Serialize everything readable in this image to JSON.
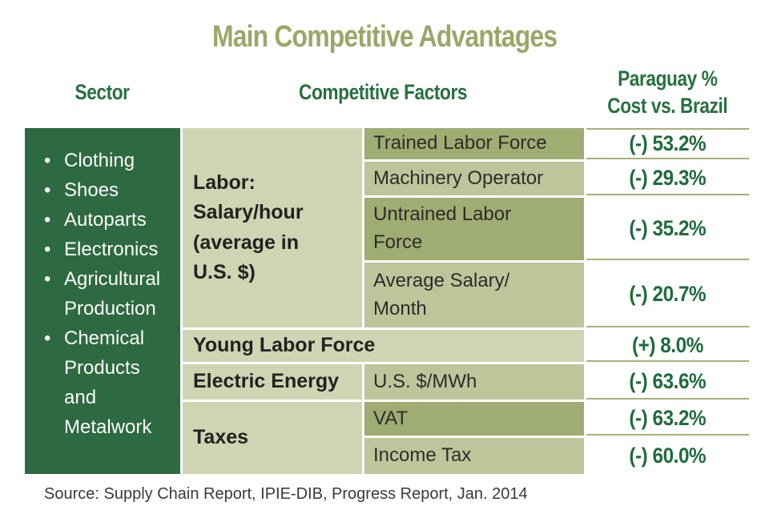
{
  "title": "Main Competitive Advantages",
  "headers": {
    "sector": "Sector",
    "factors": "Competitive Factors",
    "paraguay": "Paraguay %\nCost vs. Brazil"
  },
  "sectors": [
    "Clothing",
    "Shoes",
    "Autoparts",
    "Electronics",
    "Agricultural\nProduction",
    "Chemical\nProducts\nand\nMetalwork"
  ],
  "table": {
    "labor": {
      "group_label": "Labor:\nSalary/hour\n(average in\nU.S. $)",
      "rows": [
        {
          "factor": "Trained Labor Force",
          "value": "(-) 53.2%"
        },
        {
          "factor": "Machinery Operator",
          "value": "(-) 29.3%"
        },
        {
          "factor": "Untrained Labor\nForce",
          "value": "(-) 35.2%"
        },
        {
          "factor": "Average Salary/\nMonth",
          "value": "(-) 20.7%"
        }
      ]
    },
    "young_labor": {
      "label": "Young Labor Force",
      "value": "(+) 8.0%"
    },
    "electric_energy": {
      "label": "Electric Energy",
      "factor": "U.S. $/MWh",
      "value": "(-) 63.6%"
    },
    "taxes": {
      "label": "Taxes",
      "rows": [
        {
          "factor": "VAT",
          "value": "(-) 63.2%"
        },
        {
          "factor": "Income Tax",
          "value": "(-) 60.0%"
        }
      ]
    }
  },
  "source": "Source: Supply Chain Report, IPIE-DIB, Progress Report, Jan. 2014",
  "colors": {
    "sidebar_green": "#2d6a41",
    "pale_cell": "#d0d4b3",
    "olive_cell": "#9fac72",
    "medium_cell": "#bdc59a",
    "header_green": "#26703f",
    "value_green": "#1e6c3c",
    "title_olive": "#9aa769",
    "separator_line": "#a8b077"
  },
  "chart_data": {
    "type": "table",
    "title": "Main Competitive Advantages",
    "columns": [
      "Sector",
      "Competitive Factors",
      "Paraguay % Cost vs. Brazil"
    ],
    "sectors": [
      "Clothing",
      "Shoes",
      "Autoparts",
      "Electronics",
      "Agricultural Production",
      "Chemical Products and Metalwork"
    ],
    "rows": [
      {
        "group": "Labor: Salary/hour (average in U.S. $)",
        "factor": "Trained Labor Force",
        "paraguay_vs_brazil_pct": -53.2
      },
      {
        "group": "Labor: Salary/hour (average in U.S. $)",
        "factor": "Machinery Operator",
        "paraguay_vs_brazil_pct": -29.3
      },
      {
        "group": "Labor: Salary/hour (average in U.S. $)",
        "factor": "Untrained Labor Force",
        "paraguay_vs_brazil_pct": -35.2
      },
      {
        "group": "Labor: Salary/hour (average in U.S. $)",
        "factor": "Average Salary/Month",
        "paraguay_vs_brazil_pct": -20.7
      },
      {
        "group": "Young Labor Force",
        "factor": "",
        "paraguay_vs_brazil_pct": 8.0
      },
      {
        "group": "Electric Energy",
        "factor": "U.S. $/MWh",
        "paraguay_vs_brazil_pct": -63.6
      },
      {
        "group": "Taxes",
        "factor": "VAT",
        "paraguay_vs_brazil_pct": -63.2
      },
      {
        "group": "Taxes",
        "factor": "Income Tax",
        "paraguay_vs_brazil_pct": -60.0
      }
    ],
    "source": "Source: Supply Chain Report, IPIE-DIB, Progress Report, Jan. 2014"
  }
}
